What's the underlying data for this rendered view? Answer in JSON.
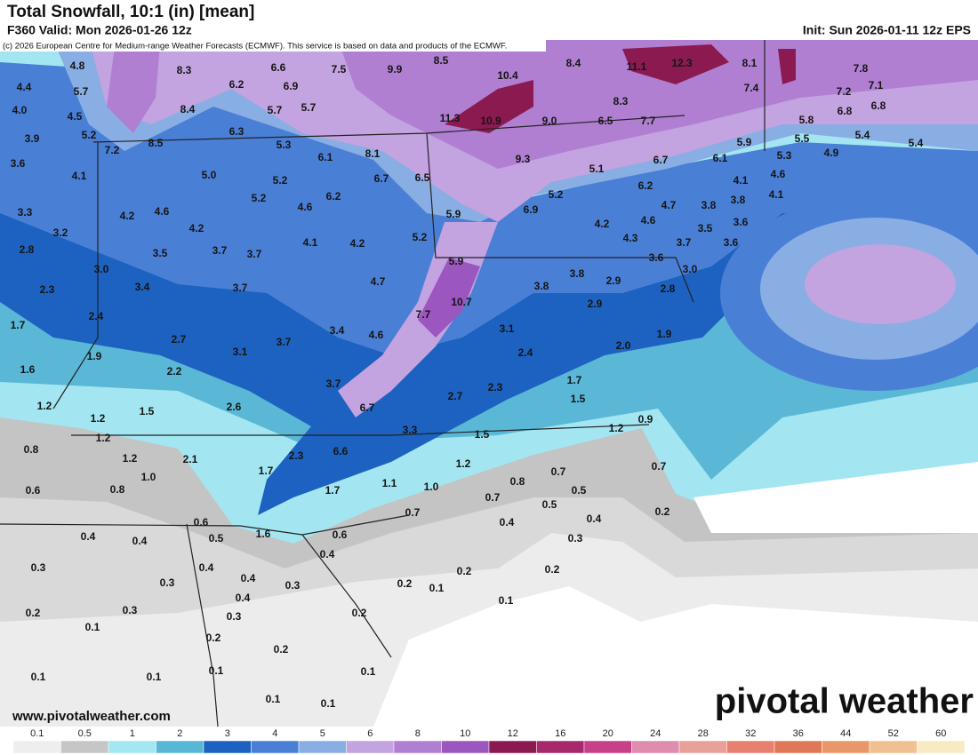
{
  "header": {
    "title": "Total Snowfall, 10:1 (in) [mean]",
    "valid": "F360 Valid: Mon 2026-01-26 12z",
    "init": "Init: Sun 2026-01-11 12z EPS",
    "credit": "(c) 2026 European Centre for Medium-range Weather Forecasts (ECMWF). This service is based on data and products of the ECMWF."
  },
  "map": {
    "labels": [
      "4.8",
      "8.3",
      "6.6",
      "7.5",
      "9.9",
      "8.5",
      "8.4",
      "11.1",
      "12.3",
      "8.1",
      "7.8",
      "4.4",
      "5.7",
      "6.2",
      "6.9",
      "10.4",
      "7.4",
      "7.2",
      "7.1",
      "4.0",
      "4.5",
      "8.4",
      "5.7",
      "5.7",
      "8.3",
      "6.8",
      "6.8",
      "3.9",
      "5.2",
      "11.3",
      "10.9",
      "9.0",
      "6.5",
      "7.7",
      "5.8",
      "7.2",
      "8.5",
      "6.3",
      "5.3",
      "5.9",
      "5.5",
      "5.4",
      "5.4",
      "3.6",
      "6.1",
      "8.1",
      "9.3",
      "6.7",
      "6.1",
      "5.3",
      "4.9",
      "4.1",
      "5.0",
      "5.2",
      "6.7",
      "6.5",
      "5.1",
      "6.2",
      "4.1",
      "4.6",
      "5.2",
      "6.2",
      "5.2",
      "4.7",
      "3.8",
      "3.8",
      "4.1",
      "3.3",
      "4.2",
      "4.6",
      "4.6",
      "5.9",
      "6.9",
      "4.2",
      "4.6",
      "3.6",
      "3.2",
      "4.2",
      "4.1",
      "4.2",
      "5.2",
      "4.3",
      "3.5",
      "3.7",
      "3.6",
      "2.8",
      "3.5",
      "3.7",
      "3.7",
      "5.9",
      "3.6",
      "3.0",
      "3.0",
      "4.7",
      "3.8",
      "3.8",
      "2.9",
      "2.8",
      "2.3",
      "3.4",
      "3.7",
      "10.7",
      "2.9",
      "1.7",
      "2.4",
      "3.4",
      "4.6",
      "7.7",
      "3.1",
      "1.9",
      "2.7",
      "3.1",
      "3.7",
      "2.4",
      "2.0",
      "1.6",
      "1.9",
      "2.2",
      "3.7",
      "1.7",
      "2.3",
      "2.7",
      "1.5",
      "6.7",
      "2.6",
      "1.2",
      "1.2",
      "1.5",
      "0.9",
      "1.2",
      "3.3",
      "1.5",
      "0.8",
      "1.2",
      "6.6",
      "2.3",
      "2.1",
      "1.2",
      "1.2",
      "0.7",
      "0.6",
      "0.8",
      "1.0",
      "1.7",
      "1.1",
      "1.0",
      "0.8",
      "0.7",
      "0.5",
      "1.7",
      "0.7",
      "0.5",
      "0.4",
      "0.2",
      "0.7",
      "0.4",
      "0.6",
      "0.4",
      "0.4",
      "0.5",
      "1.6",
      "0.6",
      "0.3",
      "0.3",
      "0.4",
      "0.4",
      "0.4",
      "0.2",
      "0.2",
      "0.3",
      "0.4",
      "0.3",
      "0.2",
      "0.1",
      "0.1",
      "0.2",
      "0.3",
      "0.3",
      "0.2",
      "0.1",
      "0.2",
      "0.2",
      "0.1",
      "0.1",
      "0.1",
      "0.1",
      "0.1",
      "0.1"
    ]
  },
  "footer": {
    "website": "www.pivotalweather.com",
    "logo": "pivotal weather"
  },
  "legend": {
    "ticks": [
      "0.1",
      "0.5",
      "1",
      "2",
      "3",
      "4",
      "5",
      "6",
      "8",
      "10",
      "12",
      "16",
      "20",
      "24",
      "28",
      "32",
      "36",
      "44",
      "52",
      "60"
    ],
    "colors": [
      "#eeeeee",
      "#c6c6c6",
      "#a2e7f2",
      "#58b7d5",
      "#1d62c0",
      "#4a7fd6",
      "#88aee4",
      "#c3a3e0",
      "#b07fd2",
      "#9b56bf",
      "#8a1a50",
      "#a8286e",
      "#c8408a",
      "#e08cb0",
      "#e8a098",
      "#e88070",
      "#e07858",
      "#e89868",
      "#f0c090",
      "#faeac4"
    ]
  }
}
